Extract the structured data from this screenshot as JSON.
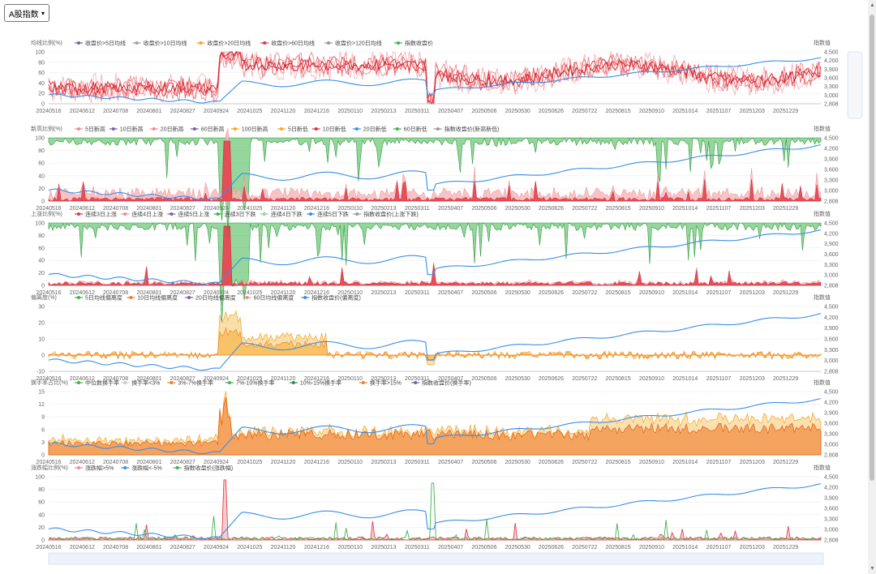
{
  "selector": {
    "value": "A股指数"
  },
  "x_ticks": [
    "20240516",
    "20240612",
    "20240708",
    "20240801",
    "20240827",
    "20240924",
    "20241025",
    "20241120",
    "20241216",
    "20250110",
    "20250213",
    "20250311",
    "20250407",
    "20250506",
    "20250530",
    "20250626",
    "20250722",
    "20250815",
    "20250910",
    "20251014",
    "20251107",
    "20251203",
    "20251229"
  ],
  "right_axis": {
    "label": "指数值",
    "ticks": [
      "2,808",
      "3,000",
      "3,300",
      "3,600",
      "3,900",
      "4,200",
      "4,500"
    ],
    "range": [
      2808,
      4500
    ]
  },
  "colors": {
    "red": "#e5323e",
    "pink": "#f08a8f",
    "lightpink": "#f5b5b8",
    "green": "#3cb44b",
    "blue": "#3a8ee6",
    "orange": "#f5a623",
    "darkorange": "#f07c2a",
    "lightorange": "#f7c96e",
    "gray": "#999999"
  },
  "chart_data": [
    {
      "type": "line",
      "ylabel": "均线比例(%)",
      "yticks": [
        "0",
        "20",
        "40",
        "60",
        "80",
        "100"
      ],
      "ylim": [
        0,
        100
      ],
      "legend": [
        {
          "name": "收盘价>5日均线",
          "color": "#7b5ea7",
          "marker": "diamond"
        },
        {
          "name": "收盘价>10日均线",
          "color": "#a0a0a0",
          "marker": "diamond"
        },
        {
          "name": "收盘价>20日均线",
          "color": "#f5a623",
          "marker": "diamond"
        },
        {
          "name": "收盘价>60日均线",
          "color": "#e5323e",
          "marker": "diamond"
        },
        {
          "name": "收盘价>120日均线",
          "color": "#999999",
          "marker": "diamond"
        },
        {
          "name": "指数收盘价",
          "color": "#3cb44b",
          "marker": "diamond"
        }
      ]
    },
    {
      "type": "area",
      "ylabel": "新高比例(%)",
      "yticks": [
        "0",
        "20",
        "40",
        "60",
        "80",
        "100"
      ],
      "ylim": [
        0,
        100
      ],
      "legend": [
        {
          "name": "5日新高",
          "color": "#f08a8f"
        },
        {
          "name": "10日新高",
          "color": "#7b5ea7"
        },
        {
          "name": "20日新高",
          "color": "#f08a8f"
        },
        {
          "name": "60日新高",
          "color": "#7b5ea7"
        },
        {
          "name": "100日新高",
          "color": "#f5a623"
        },
        {
          "name": "5日新低",
          "color": "#f5a623"
        },
        {
          "name": "10日新低",
          "color": "#e5323e"
        },
        {
          "name": "20日新低",
          "color": "#3a8ee6"
        },
        {
          "name": "60日新低",
          "color": "#3cb44b"
        },
        {
          "name": "指数收盘价(新高新低)",
          "color": "#999999"
        }
      ]
    },
    {
      "type": "area",
      "ylabel": "上涨比例(%)",
      "yticks": [
        "0",
        "20",
        "40",
        "60",
        "80",
        "100"
      ],
      "ylim": [
        0,
        100
      ],
      "legend": [
        {
          "name": "连续3日上涨",
          "color": "#e5323e"
        },
        {
          "name": "连续4日上涨",
          "color": "#f08a8f"
        },
        {
          "name": "连续5日上涨",
          "color": "#7b5ea7"
        },
        {
          "name": "连续3日下跌",
          "color": "#3cb44b"
        },
        {
          "name": "连续4日下跌",
          "color": "#8fd49a"
        },
        {
          "name": "连续5日下跌",
          "color": "#3a8ee6"
        },
        {
          "name": "指数收盘价(上涨下跌)",
          "color": "#999999"
        }
      ]
    },
    {
      "type": "area",
      "ylabel": "偏离度(%)",
      "yticks": [
        "-10",
        "0",
        "10",
        "20",
        "30"
      ],
      "ylim": [
        -10,
        30
      ],
      "legend": [
        {
          "name": "5日均线偏离度",
          "color": "#3cb44b"
        },
        {
          "name": "10日均线偏离度",
          "color": "#f07c2a"
        },
        {
          "name": "20日均线偏离度",
          "color": "#7b5ea7"
        },
        {
          "name": "60日均线偏离度",
          "color": "#f08a8f"
        },
        {
          "name": "指数收盘价(偏离度)",
          "color": "#3a8ee6"
        }
      ]
    },
    {
      "type": "area",
      "ylabel": "换手率占比(%)",
      "yticks": [
        "0",
        "3",
        "6",
        "9",
        "12",
        "15"
      ],
      "ylim": [
        0,
        15
      ],
      "legend": [
        {
          "name": "中位数换手率",
          "color": "#3cb44b"
        },
        {
          "name": "换手率<3%",
          "color": "#cccccc"
        },
        {
          "name": "3%-7%换手率",
          "color": "#f07c2a"
        },
        {
          "name": "7%-10%换手率",
          "color": "#3cb44b"
        },
        {
          "name": "10%-15%换手率",
          "color": "#2e8b57"
        },
        {
          "name": "换手率>15%",
          "color": "#f07c2a"
        },
        {
          "name": "指数收盘价(换手率)",
          "color": "#7b5ea7"
        }
      ]
    },
    {
      "type": "line",
      "ylabel": "涨跌幅比例(%)",
      "yticks": [
        "0",
        "20",
        "40",
        "60",
        "80",
        "100"
      ],
      "ylim": [
        0,
        100
      ],
      "legend": [
        {
          "name": "涨跌幅>5%",
          "color": "#f08a8f"
        },
        {
          "name": "涨跌幅<-5%",
          "color": "#3a8ee6"
        },
        {
          "name": "指数收盘价(涨跌幅)",
          "color": "#3cb44b"
        }
      ]
    }
  ]
}
